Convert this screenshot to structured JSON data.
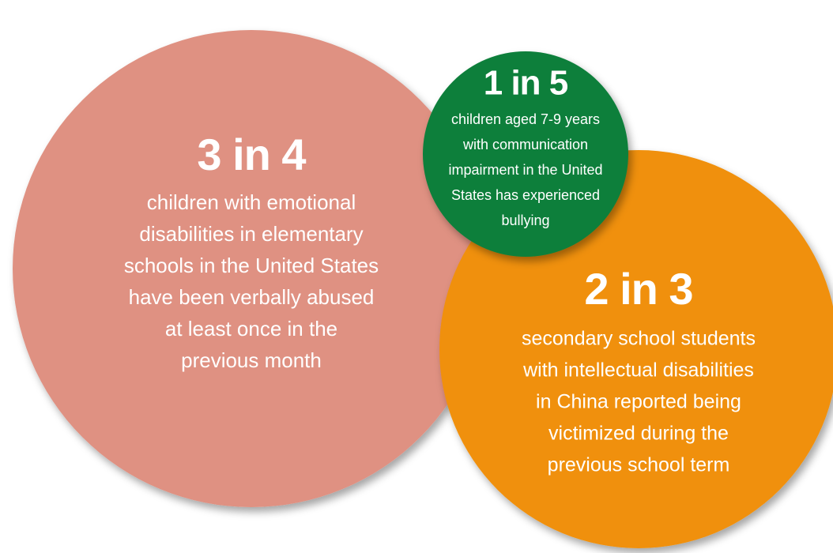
{
  "bubbles": [
    {
      "headline": "3 in 4",
      "lines": [
        "children with emotional",
        "disabilities in elementary",
        "schools in the United States",
        "have been verbally abused",
        "at least once in the",
        "previous month"
      ]
    },
    {
      "headline": "2 in 3",
      "lines": [
        "secondary school students",
        "with intellectual disabilities",
        "in China reported being",
        "victimized during the",
        "previous school term"
      ]
    },
    {
      "headline": "1 in 5",
      "lines": [
        "children aged 7-9 years",
        "with communication",
        "impairment in the United",
        "States has experienced",
        "bullying"
      ]
    }
  ]
}
